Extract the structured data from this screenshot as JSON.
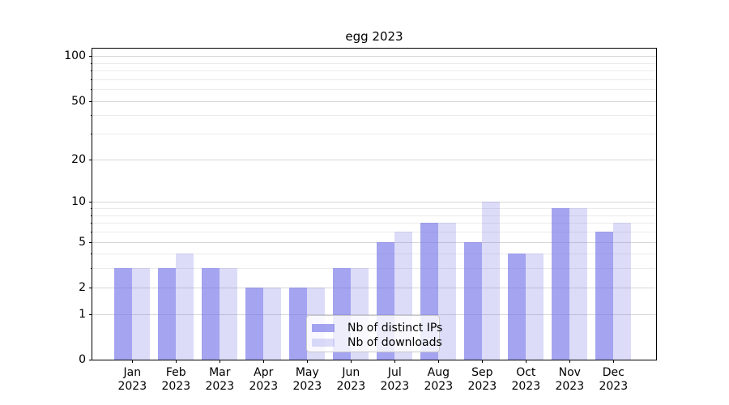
{
  "chart_data": {
    "type": "bar",
    "title": "egg 2023",
    "categories": [
      "Jan",
      "Feb",
      "Mar",
      "Apr",
      "May",
      "Jun",
      "Jul",
      "Aug",
      "Sep",
      "Oct",
      "Nov",
      "Dec"
    ],
    "category_year": "2023",
    "series": [
      {
        "name": "Nb of distinct IPs",
        "values": [
          3,
          3,
          3,
          2,
          2,
          3,
          5,
          7,
          5,
          4,
          9,
          6
        ],
        "base_color": "#7373e8",
        "alpha": 0.65,
        "composite_hex": "#a4a4ef"
      },
      {
        "name": "Nb of downloads",
        "values": [
          3,
          4,
          3,
          2,
          2,
          3,
          6,
          7,
          10,
          4,
          9,
          7
        ],
        "base_color": "#7373e8",
        "alpha": 0.25,
        "composite_hex": "#dcdcf9"
      }
    ],
    "yscale": "log1p",
    "ylim": [
      0,
      112
    ],
    "y_major_ticks": [
      0,
      1,
      2,
      5,
      10,
      20,
      50,
      100
    ],
    "y_minor_ticks": [
      3,
      4,
      6,
      7,
      8,
      9,
      30,
      40,
      60,
      70,
      80,
      90
    ],
    "grid": {
      "enabled": true,
      "major_color": "#d7d7d7",
      "minor_color": "#ebebeb"
    },
    "legend": {
      "position": "lower center",
      "entries": [
        "Nb of distinct IPs",
        "Nb of downloads"
      ]
    }
  }
}
